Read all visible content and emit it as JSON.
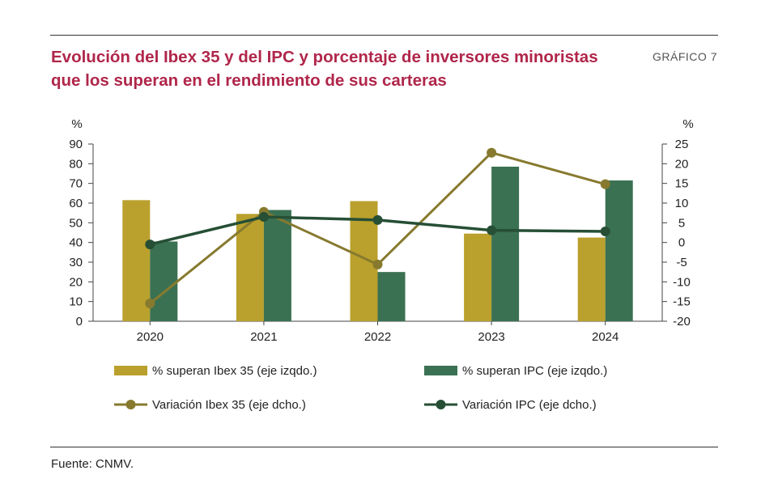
{
  "header": {
    "title_line1": "Evolución del Ibex 35 y del IPC y porcentaje de inversores minoristas",
    "title_line2": "que los superan en el rendimiento de sus carteras",
    "chart_number": "GRÁFICO 7"
  },
  "footer": {
    "source": "Fuente: CNMV."
  },
  "colors": {
    "ibex": "#baa02c",
    "ipc": "#3a7152",
    "ibex_line": "#877a2f",
    "ipc_line": "#264f35",
    "title": "#b0264a"
  },
  "chart_data": {
    "type": "bar+line",
    "title": "Evolución del Ibex 35 y del IPC y porcentaje de inversores minoristas que los superan en el rendimiento de sus carteras",
    "categories": [
      "2020",
      "2021",
      "2022",
      "2023",
      "2024"
    ],
    "y_left": {
      "label": "%",
      "lim": [
        0,
        90
      ],
      "ticks": [
        0,
        10,
        20,
        30,
        40,
        50,
        60,
        70,
        80,
        90
      ]
    },
    "y_right": {
      "label": "%",
      "lim": [
        -20,
        25
      ],
      "ticks": [
        -20,
        -15,
        -10,
        -5,
        0,
        5,
        10,
        15,
        20,
        25
      ]
    },
    "grid": false,
    "legend_position": "bottom",
    "bar_series": [
      {
        "name": "% superan Ibex 35 (eje izqdo.)",
        "values": [
          61.5,
          54.5,
          61,
          44.5,
          42.5
        ],
        "color": "#baa02c",
        "axis": "left"
      },
      {
        "name": "% superan IPC (eje izqdo.)",
        "values": [
          40.5,
          56.5,
          25,
          78.5,
          71.5
        ],
        "color": "#3a7152",
        "axis": "left"
      }
    ],
    "line_series": [
      {
        "name": "Variación Ibex 35 (eje dcho.)",
        "values": [
          -15.5,
          7.8,
          -5.6,
          22.8,
          14.8
        ],
        "color": "#877a2f",
        "axis": "right"
      },
      {
        "name": "Variación IPC (eje dcho.)",
        "values": [
          -0.5,
          6.5,
          5.7,
          3.1,
          2.8
        ],
        "color": "#264f35",
        "axis": "right"
      }
    ]
  }
}
